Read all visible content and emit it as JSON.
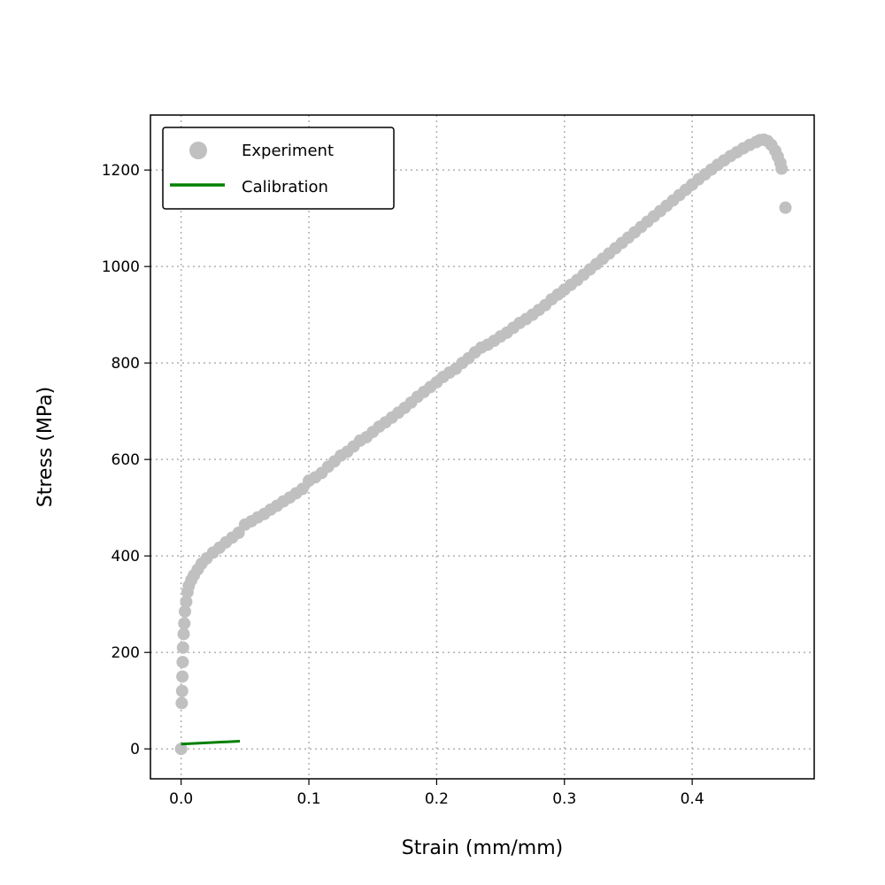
{
  "chart_data": {
    "type": "scatter",
    "title": "",
    "xlabel": "Strain (mm/mm)",
    "ylabel": "Stress (MPa)",
    "xlim": [
      -0.024,
      0.4955
    ],
    "ylim": [
      -62,
      1314
    ],
    "x_ticks": [
      0.0,
      0.1,
      0.2,
      0.3,
      0.4
    ],
    "x_tick_labels": [
      "0.0",
      "0.1",
      "0.2",
      "0.3",
      "0.4"
    ],
    "y_ticks": [
      0,
      200,
      400,
      600,
      800,
      1000,
      1200
    ],
    "y_tick_labels": [
      "0",
      "200",
      "400",
      "600",
      "800",
      "1000",
      "1200"
    ],
    "grid": true,
    "grid_style": "dotted",
    "legend_position": "top-left",
    "series": [
      {
        "name": "Experiment",
        "kind": "scatter",
        "color": "#c0c0c0",
        "points": [
          [
            0.0,
            0
          ],
          [
            0.0005,
            95
          ],
          [
            0.0008,
            120
          ],
          [
            0.001,
            150
          ],
          [
            0.0012,
            180
          ],
          [
            0.0015,
            210
          ],
          [
            0.002,
            238
          ],
          [
            0.0025,
            260
          ],
          [
            0.003,
            285
          ],
          [
            0.004,
            305
          ],
          [
            0.005,
            325
          ],
          [
            0.006,
            338
          ],
          [
            0.008,
            350
          ],
          [
            0.01,
            360
          ],
          [
            0.013,
            372
          ],
          [
            0.016,
            384
          ],
          [
            0.02,
            395
          ],
          [
            0.025,
            407
          ],
          [
            0.03,
            417
          ],
          [
            0.035,
            428
          ],
          [
            0.04,
            438
          ],
          [
            0.045,
            448
          ],
          [
            0.05,
            465
          ],
          [
            0.055,
            472
          ],
          [
            0.06,
            480
          ],
          [
            0.065,
            487
          ],
          [
            0.07,
            496
          ],
          [
            0.075,
            504
          ],
          [
            0.08,
            513
          ],
          [
            0.085,
            521
          ],
          [
            0.09,
            530
          ],
          [
            0.095,
            539
          ],
          [
            0.1,
            556
          ],
          [
            0.105,
            563
          ],
          [
            0.11,
            572
          ],
          [
            0.115,
            585
          ],
          [
            0.12,
            596
          ],
          [
            0.125,
            608
          ],
          [
            0.13,
            616
          ],
          [
            0.135,
            627
          ],
          [
            0.14,
            639
          ],
          [
            0.145,
            646
          ],
          [
            0.15,
            657
          ],
          [
            0.155,
            668
          ],
          [
            0.16,
            677
          ],
          [
            0.165,
            687
          ],
          [
            0.17,
            697
          ],
          [
            0.175,
            707
          ],
          [
            0.18,
            718
          ],
          [
            0.185,
            730
          ],
          [
            0.19,
            740
          ],
          [
            0.195,
            750
          ],
          [
            0.2,
            760
          ],
          [
            0.205,
            771
          ],
          [
            0.21,
            780
          ],
          [
            0.215,
            788
          ],
          [
            0.22,
            800
          ],
          [
            0.225,
            810
          ],
          [
            0.23,
            822
          ],
          [
            0.235,
            832
          ],
          [
            0.24,
            838
          ],
          [
            0.245,
            846
          ],
          [
            0.25,
            855
          ],
          [
            0.255,
            863
          ],
          [
            0.26,
            873
          ],
          [
            0.265,
            883
          ],
          [
            0.27,
            891
          ],
          [
            0.275,
            900
          ],
          [
            0.28,
            910
          ],
          [
            0.285,
            920
          ],
          [
            0.29,
            932
          ],
          [
            0.295,
            942
          ],
          [
            0.3,
            952
          ],
          [
            0.305,
            962
          ],
          [
            0.31,
            972
          ],
          [
            0.315,
            983
          ],
          [
            0.32,
            994
          ],
          [
            0.325,
            1005
          ],
          [
            0.33,
            1016
          ],
          [
            0.335,
            1027
          ],
          [
            0.34,
            1038
          ],
          [
            0.345,
            1049
          ],
          [
            0.35,
            1060
          ],
          [
            0.355,
            1071
          ],
          [
            0.36,
            1082
          ],
          [
            0.365,
            1093
          ],
          [
            0.37,
            1104
          ],
          [
            0.375,
            1115
          ],
          [
            0.38,
            1126
          ],
          [
            0.385,
            1137
          ],
          [
            0.39,
            1148
          ],
          [
            0.395,
            1159
          ],
          [
            0.4,
            1170
          ],
          [
            0.405,
            1181
          ],
          [
            0.41,
            1191
          ],
          [
            0.415,
            1201
          ],
          [
            0.42,
            1211
          ],
          [
            0.425,
            1220
          ],
          [
            0.43,
            1229
          ],
          [
            0.435,
            1237
          ],
          [
            0.44,
            1245
          ],
          [
            0.445,
            1252
          ],
          [
            0.45,
            1258
          ],
          [
            0.453,
            1262
          ],
          [
            0.456,
            1263
          ],
          [
            0.459,
            1260
          ],
          [
            0.462,
            1252
          ],
          [
            0.465,
            1240
          ],
          [
            0.467,
            1228
          ],
          [
            0.469,
            1215
          ],
          [
            0.47,
            1203
          ],
          [
            0.473,
            1122
          ]
        ]
      },
      {
        "name": "Calibration",
        "kind": "line",
        "color": "#008000",
        "points": [
          [
            0.0,
            10
          ],
          [
            0.046,
            16
          ]
        ]
      }
    ]
  }
}
